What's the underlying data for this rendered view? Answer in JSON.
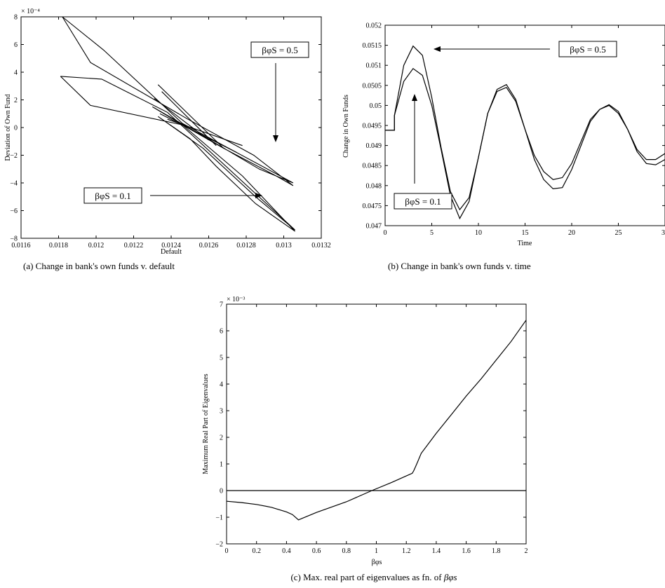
{
  "chart_data": [
    {
      "type": "line",
      "caption": "(a) Change in bank's own funds v. default",
      "xlabel": "Default",
      "ylabel": "Deviation of Own Fund",
      "y_multiplier": "× 10⁻⁴",
      "xlim": [
        0.0116,
        0.0132
      ],
      "ylim": [
        -8,
        8
      ],
      "xticks": [
        0.0116,
        0.0118,
        0.012,
        0.0122,
        0.0124,
        0.0126,
        0.0128,
        0.013,
        0.0132
      ],
      "xtick_labels": [
        "0.0116",
        "0.0118",
        "0.012",
        "0.0122",
        "0.0124",
        "0.0126",
        "0.0128",
        "0.013",
        "0.0132"
      ],
      "yticks": [
        -8,
        -6,
        -4,
        -2,
        0,
        2,
        4,
        6,
        8
      ],
      "ytick_labels": [
        "−8",
        "−6",
        "−4",
        "−2",
        "0",
        "2",
        "4",
        "6",
        "8"
      ],
      "annotations": [
        {
          "text": "βφS = 0.5",
          "points_to": [
            0.01291,
            -2.0
          ]
        },
        {
          "text": "βφS = 0.1",
          "points_to": [
            0.01287,
            -5.9
          ]
        }
      ],
      "series": [
        {
          "values": [
            [
              0.01182,
              8.0
            ],
            [
              0.01197,
              4.7
            ],
            [
              0.01249,
              0.6
            ],
            [
              0.01284,
              -2.0
            ],
            [
              0.01305,
              -4.2
            ],
            [
              0.01296,
              -3.5
            ],
            [
              0.01268,
              -1.5
            ],
            [
              0.01246,
              0.2
            ],
            [
              0.0123,
              1.5
            ],
            [
              0.01262,
              -1.0
            ],
            [
              0.01287,
              -3.0
            ],
            [
              0.01305,
              -4.0
            ],
            [
              0.01246,
              0.3
            ],
            [
              0.01204,
              5.6
            ],
            [
              0.01182,
              8.0
            ]
          ]
        },
        {
          "values": [
            [
              0.01181,
              3.7
            ],
            [
              0.01197,
              1.6
            ],
            [
              0.01246,
              0.2
            ],
            [
              0.01278,
              -3.5
            ],
            [
              0.01306,
              -7.5
            ],
            [
              0.01285,
              -5.5
            ],
            [
              0.01264,
              -2.8
            ],
            [
              0.0125,
              -0.8
            ],
            [
              0.01233,
              0.8
            ],
            [
              0.01257,
              -1.5
            ],
            [
              0.01285,
              -5.0
            ],
            [
              0.01306,
              -7.4
            ],
            [
              0.01238,
              1.1
            ],
            [
              0.01203,
              3.5
            ],
            [
              0.01181,
              3.7
            ]
          ]
        },
        {
          "values": [
            [
              0.01233,
              3.1
            ],
            [
              0.01268,
              -1.5
            ]
          ]
        },
        {
          "values": [
            [
              0.01235,
              2.6
            ],
            [
              0.01264,
              -1.3
            ]
          ]
        },
        {
          "values": [
            [
              0.01231,
              2.1
            ],
            [
              0.0126,
              -0.9
            ]
          ]
        },
        {
          "values": [
            [
              0.01234,
              1.0
            ],
            [
              0.01275,
              -1.8
            ]
          ]
        },
        {
          "values": [
            [
              0.01238,
              0.6
            ],
            [
              0.01278,
              -1.3
            ]
          ]
        }
      ]
    },
    {
      "type": "line",
      "caption": "(b) Change in bank's own funds v. time",
      "xlabel": "Time",
      "ylabel": "Change in Own Funds",
      "xlim": [
        0,
        30
      ],
      "ylim": [
        0.047,
        0.052
      ],
      "xticks": [
        0,
        5,
        10,
        15,
        20,
        25,
        30
      ],
      "xtick_labels": [
        "0",
        "5",
        "10",
        "15",
        "20",
        "25",
        "30"
      ],
      "yticks": [
        0.047,
        0.0475,
        0.048,
        0.0485,
        0.049,
        0.0495,
        0.05,
        0.0505,
        0.051,
        0.0515,
        0.052
      ],
      "ytick_labels": [
        "0.047",
        "0.0475",
        "0.048",
        "0.0485",
        "0.049",
        "0.0495",
        "0.05",
        "0.0505",
        "0.051",
        "0.0515",
        "0.052"
      ],
      "annotations": [
        {
          "text": "βφS = 0.5",
          "points_to": [
            3.0,
            0.05145
          ]
        },
        {
          "text": "βφS = 0.1",
          "points_to": [
            2.9,
            0.05092
          ]
        }
      ],
      "series": [
        {
          "name": "βφS = 0.5",
          "x": [
            0,
            1,
            1,
            2,
            3,
            4,
            5,
            6,
            7,
            8,
            9,
            10,
            11,
            12,
            13,
            14,
            15,
            16,
            17,
            18,
            19,
            20,
            21,
            22,
            23,
            24,
            25,
            26,
            27,
            28,
            29,
            30
          ],
          "values": [
            0.04938,
            0.04938,
            0.04975,
            0.051,
            0.05148,
            0.05125,
            0.0502,
            0.04895,
            0.04785,
            0.0474,
            0.0477,
            0.0487,
            0.0498,
            0.05035,
            0.05045,
            0.0501,
            0.0494,
            0.04875,
            0.04835,
            0.04815,
            0.0482,
            0.04855,
            0.0491,
            0.04965,
            0.0499,
            0.05,
            0.0498,
            0.0494,
            0.0489,
            0.04865,
            0.04865,
            0.0488
          ]
        },
        {
          "name": "βφS = 0.1",
          "x": [
            0,
            1,
            1,
            2,
            3,
            4,
            5,
            6,
            7,
            8,
            9,
            10,
            11,
            12,
            13,
            14,
            15,
            16,
            17,
            18,
            19,
            20,
            21,
            22,
            23,
            24,
            25,
            26,
            27,
            28,
            29,
            30
          ],
          "values": [
            0.04938,
            0.04938,
            0.04975,
            0.0506,
            0.05092,
            0.05075,
            0.05,
            0.0489,
            0.04775,
            0.04718,
            0.0476,
            0.0487,
            0.0498,
            0.0504,
            0.05052,
            0.05015,
            0.0494,
            0.04865,
            0.04815,
            0.04792,
            0.04795,
            0.0484,
            0.049,
            0.0496,
            0.0499,
            0.05002,
            0.04985,
            0.0494,
            0.04885,
            0.04855,
            0.04852,
            0.04865
          ]
        }
      ]
    },
    {
      "type": "line",
      "caption": "(c) Max. real part of eigenvalues as fn. of ",
      "caption_symbol": "βφs",
      "xlabel": "βφs",
      "ylabel": "Maximum Real Part of Eigenvalues",
      "y_multiplier": "× 10⁻³",
      "xlim": [
        0,
        2
      ],
      "ylim": [
        -2,
        7
      ],
      "xticks": [
        0,
        0.2,
        0.4,
        0.6,
        0.8,
        1,
        1.2,
        1.4,
        1.6,
        1.8,
        2
      ],
      "xtick_labels": [
        "0",
        "0.2",
        "0.4",
        "0.6",
        "0.8",
        "1",
        "1.2",
        "1.4",
        "1.6",
        "1.8",
        "2"
      ],
      "yticks": [
        -2,
        -1,
        0,
        1,
        2,
        3,
        4,
        5,
        6,
        7
      ],
      "ytick_labels": [
        "−2",
        "−1",
        "0",
        "1",
        "2",
        "3",
        "4",
        "5",
        "6",
        "7"
      ],
      "series": [
        {
          "x": [
            0,
            0.1,
            0.2,
            0.3,
            0.4,
            0.44,
            0.47,
            0.48,
            0.6,
            0.8,
            0.97,
            1.1,
            1.2,
            1.24,
            1.25,
            1.27,
            1.3,
            1.4,
            1.5,
            1.6,
            1.7,
            1.8,
            1.9,
            2.0
          ],
          "values": [
            -0.4,
            -0.45,
            -0.52,
            -0.63,
            -0.8,
            -0.9,
            -1.05,
            -1.1,
            -0.82,
            -0.42,
            0.0,
            0.3,
            0.55,
            0.65,
            0.75,
            1.0,
            1.4,
            2.15,
            2.85,
            3.55,
            4.2,
            4.9,
            5.6,
            6.4
          ]
        },
        {
          "x": [
            0,
            2
          ],
          "values": [
            0,
            0
          ]
        }
      ]
    }
  ]
}
